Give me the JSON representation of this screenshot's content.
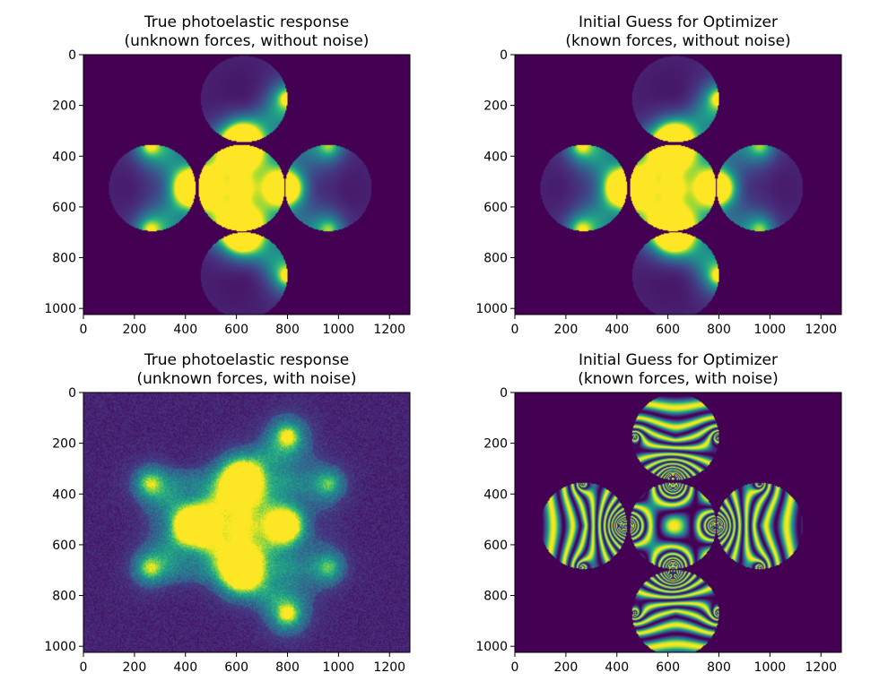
{
  "figure": {
    "background": "#ffffff"
  },
  "colormap": {
    "name": "viridis",
    "low": "#440154",
    "mid": "#21918c",
    "high": "#fde725"
  },
  "chart_data": [
    {
      "type": "heatmap",
      "title_lines": [
        "True photoelastic response",
        "(unknown forces, without noise)"
      ],
      "xlim": [
        0,
        1280
      ],
      "ylim": [
        1024,
        0
      ],
      "xticks": [
        0,
        200,
        400,
        600,
        800,
        1000,
        1200
      ],
      "yticks": [
        0,
        200,
        400,
        600,
        800,
        1000
      ],
      "style": "smooth",
      "disks": [
        {
          "cx": 630,
          "cy": 175,
          "r": 170
        },
        {
          "cx": 270,
          "cy": 525,
          "r": 170
        },
        {
          "cx": 620,
          "cy": 525,
          "r": 170
        },
        {
          "cx": 960,
          "cy": 525,
          "r": 170
        },
        {
          "cx": 630,
          "cy": 870,
          "r": 170
        }
      ],
      "hotspots": [
        {
          "x": 800,
          "y": 175,
          "s": 1.0
        },
        {
          "x": 620,
          "y": 335,
          "s": 1.6
        },
        {
          "x": 620,
          "y": 365,
          "s": 1.6
        },
        {
          "x": 265,
          "y": 360,
          "s": 0.7
        },
        {
          "x": 960,
          "y": 360,
          "s": 0.5
        },
        {
          "x": 420,
          "y": 525,
          "s": 1.6
        },
        {
          "x": 450,
          "y": 525,
          "s": 1.6
        },
        {
          "x": 780,
          "y": 525,
          "s": 0.6
        },
        {
          "x": 800,
          "y": 525,
          "s": 0.5
        },
        {
          "x": 265,
          "y": 690,
          "s": 0.7
        },
        {
          "x": 960,
          "y": 690,
          "s": 0.5
        },
        {
          "x": 620,
          "y": 685,
          "s": 1.6
        },
        {
          "x": 620,
          "y": 715,
          "s": 1.6
        },
        {
          "x": 800,
          "y": 870,
          "s": 1.0
        }
      ]
    },
    {
      "type": "heatmap",
      "title_lines": [
        "Initial Guess for Optimizer",
        "(known forces, without noise)"
      ],
      "xlim": [
        0,
        1280
      ],
      "ylim": [
        1024,
        0
      ],
      "xticks": [
        0,
        200,
        400,
        600,
        800,
        1000,
        1200
      ],
      "yticks": [
        0,
        200,
        400,
        600,
        800,
        1000
      ],
      "style": "smooth",
      "disks": [
        {
          "cx": 630,
          "cy": 175,
          "r": 170
        },
        {
          "cx": 270,
          "cy": 525,
          "r": 170
        },
        {
          "cx": 620,
          "cy": 525,
          "r": 170
        },
        {
          "cx": 960,
          "cy": 525,
          "r": 170
        },
        {
          "cx": 630,
          "cy": 870,
          "r": 170
        }
      ],
      "hotspots": [
        {
          "x": 800,
          "y": 175,
          "s": 1.0
        },
        {
          "x": 620,
          "y": 335,
          "s": 1.6
        },
        {
          "x": 620,
          "y": 365,
          "s": 1.6
        },
        {
          "x": 265,
          "y": 360,
          "s": 0.7
        },
        {
          "x": 960,
          "y": 360,
          "s": 0.5
        },
        {
          "x": 420,
          "y": 525,
          "s": 1.6
        },
        {
          "x": 450,
          "y": 525,
          "s": 1.6
        },
        {
          "x": 780,
          "y": 525,
          "s": 0.6
        },
        {
          "x": 800,
          "y": 525,
          "s": 0.5
        },
        {
          "x": 265,
          "y": 690,
          "s": 0.7
        },
        {
          "x": 960,
          "y": 690,
          "s": 0.5
        },
        {
          "x": 620,
          "y": 685,
          "s": 1.6
        },
        {
          "x": 620,
          "y": 715,
          "s": 1.6
        },
        {
          "x": 800,
          "y": 870,
          "s": 1.0
        }
      ]
    },
    {
      "type": "heatmap",
      "title_lines": [
        "True photoelastic response",
        "(unknown forces, with noise)"
      ],
      "xlim": [
        0,
        1280
      ],
      "ylim": [
        1024,
        0
      ],
      "xticks": [
        0,
        200,
        400,
        600,
        800,
        1000,
        1200
      ],
      "yticks": [
        0,
        200,
        400,
        600,
        800,
        1000
      ],
      "style": "noisy",
      "disks": [],
      "hotspots": [
        {
          "x": 800,
          "y": 175,
          "s": 1.0
        },
        {
          "x": 620,
          "y": 335,
          "s": 1.6
        },
        {
          "x": 620,
          "y": 365,
          "s": 1.6
        },
        {
          "x": 265,
          "y": 360,
          "s": 0.6
        },
        {
          "x": 960,
          "y": 360,
          "s": 0.4
        },
        {
          "x": 420,
          "y": 525,
          "s": 1.6
        },
        {
          "x": 450,
          "y": 525,
          "s": 1.6
        },
        {
          "x": 780,
          "y": 525,
          "s": 0.5
        },
        {
          "x": 800,
          "y": 525,
          "s": 0.4
        },
        {
          "x": 265,
          "y": 690,
          "s": 0.6
        },
        {
          "x": 960,
          "y": 690,
          "s": 0.4
        },
        {
          "x": 620,
          "y": 685,
          "s": 1.6
        },
        {
          "x": 620,
          "y": 715,
          "s": 1.6
        },
        {
          "x": 800,
          "y": 870,
          "s": 1.0
        }
      ]
    },
    {
      "type": "heatmap",
      "title_lines": [
        "Initial Guess for Optimizer",
        "(known forces, with noise)"
      ],
      "xlim": [
        0,
        1280
      ],
      "ylim": [
        1024,
        0
      ],
      "xticks": [
        0,
        200,
        400,
        600,
        800,
        1000,
        1200
      ],
      "yticks": [
        0,
        200,
        400,
        600,
        800,
        1000
      ],
      "style": "fringes",
      "disks": [
        {
          "cx": 630,
          "cy": 175,
          "r": 170
        },
        {
          "cx": 270,
          "cy": 525,
          "r": 170
        },
        {
          "cx": 620,
          "cy": 525,
          "r": 170
        },
        {
          "cx": 960,
          "cy": 525,
          "r": 170
        },
        {
          "cx": 630,
          "cy": 870,
          "r": 170
        }
      ],
      "hotspots": [
        {
          "x": 800,
          "y": 175,
          "s": 1.0
        },
        {
          "x": 470,
          "y": 175,
          "s": 0.8
        },
        {
          "x": 620,
          "y": 335,
          "s": 1.6
        },
        {
          "x": 620,
          "y": 365,
          "s": 1.6
        },
        {
          "x": 265,
          "y": 360,
          "s": 0.8
        },
        {
          "x": 960,
          "y": 360,
          "s": 0.8
        },
        {
          "x": 420,
          "y": 525,
          "s": 1.6
        },
        {
          "x": 450,
          "y": 525,
          "s": 1.6
        },
        {
          "x": 780,
          "y": 525,
          "s": 1.2
        },
        {
          "x": 800,
          "y": 525,
          "s": 1.2
        },
        {
          "x": 265,
          "y": 690,
          "s": 0.8
        },
        {
          "x": 960,
          "y": 690,
          "s": 0.8
        },
        {
          "x": 620,
          "y": 685,
          "s": 1.6
        },
        {
          "x": 620,
          "y": 715,
          "s": 1.6
        },
        {
          "x": 800,
          "y": 870,
          "s": 1.0
        },
        {
          "x": 470,
          "y": 870,
          "s": 0.8
        }
      ]
    }
  ]
}
